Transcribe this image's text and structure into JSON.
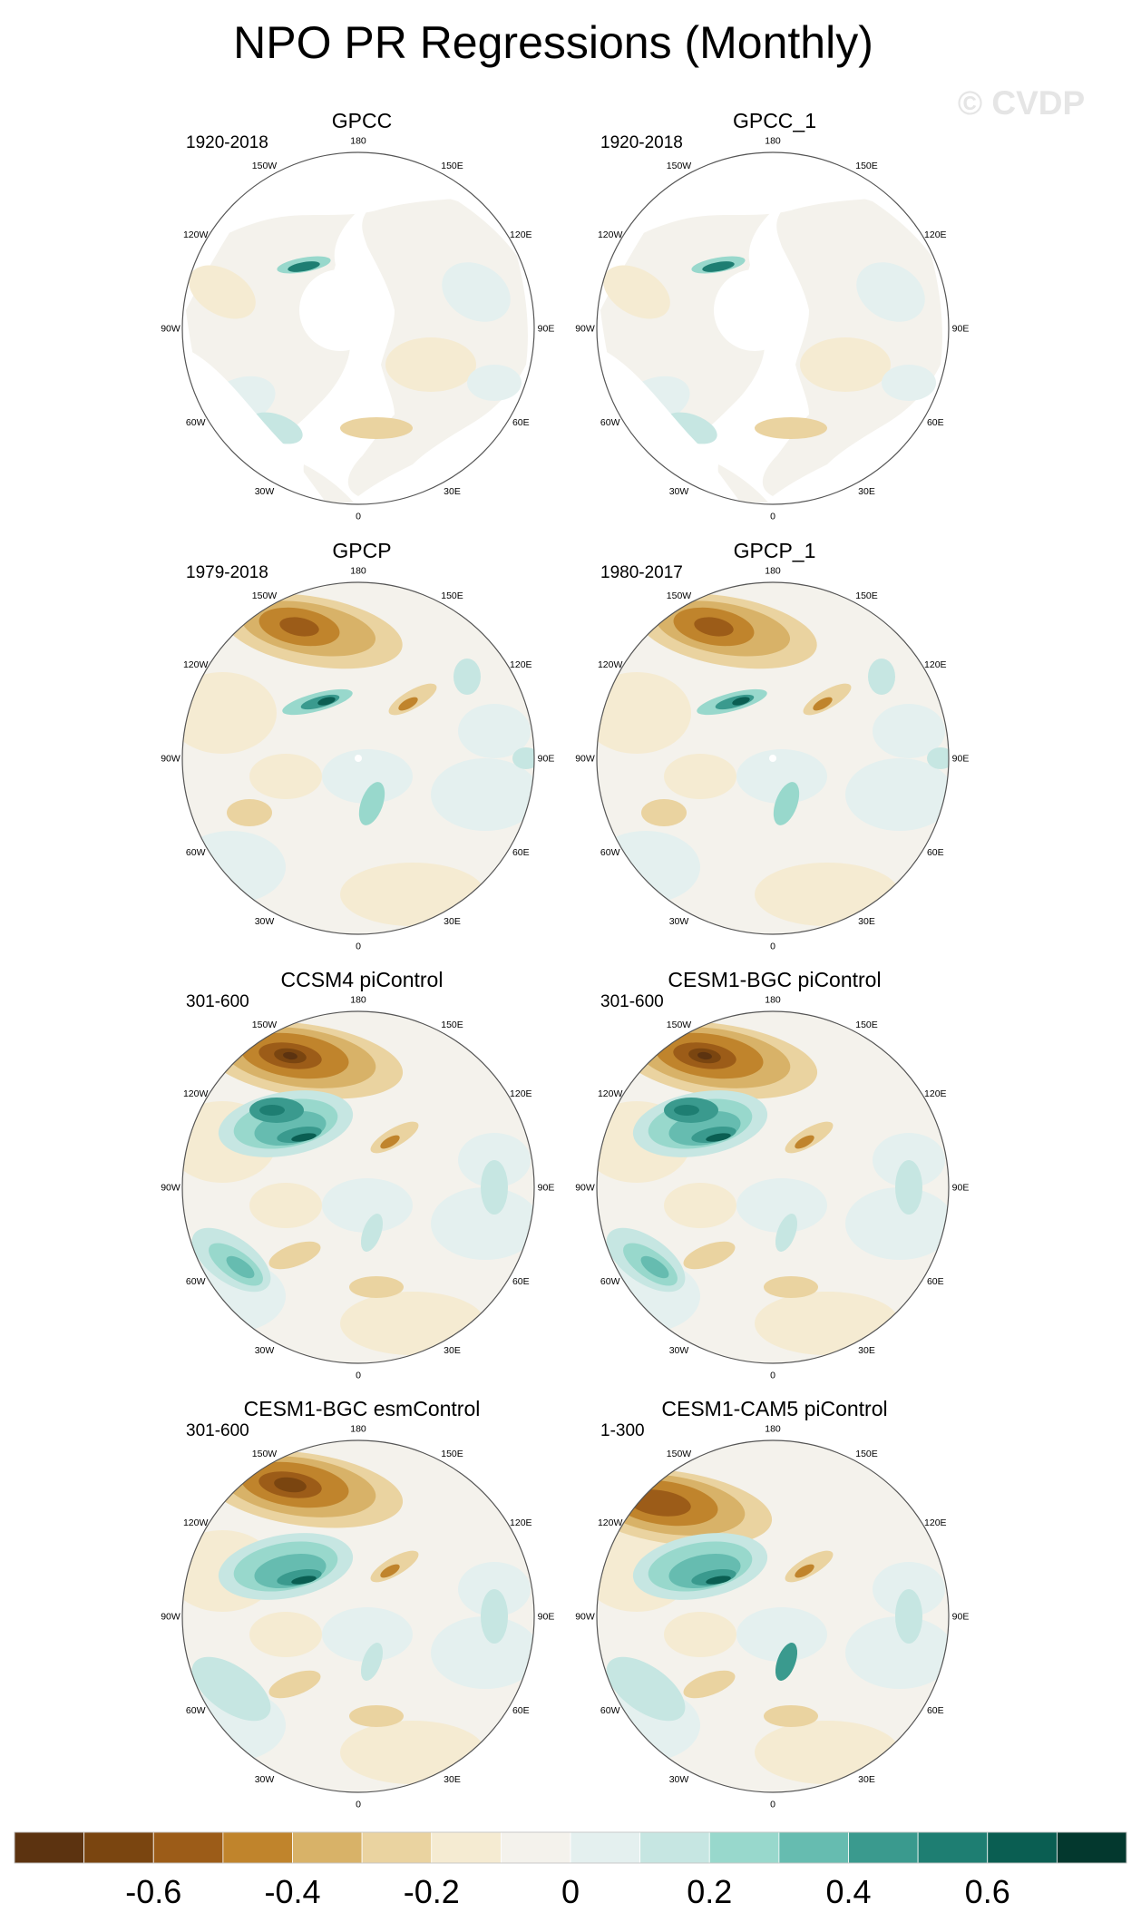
{
  "title": "NPO PR Regressions (Monthly)",
  "watermark": "© CVDP",
  "lon_labels": [
    "180",
    "150E",
    "120E",
    "90E",
    "60E",
    "30E",
    "0",
    "30W",
    "60W",
    "90W",
    "120W",
    "150W"
  ],
  "panels": [
    {
      "name": "GPCC",
      "period": "1920-2018",
      "pattern": "land",
      "features": [
        {
          "label": "Alaska/Pacific coastal pr",
          "sign": "positive",
          "level": 0.5
        },
        {
          "label": "Mediterranean pr",
          "sign": "negative",
          "level": 0.2
        }
      ]
    },
    {
      "name": "GPCC_1",
      "period": "1920-2018",
      "pattern": "land",
      "features": [
        {
          "label": "Alaska/Pacific coastal pr",
          "sign": "positive",
          "level": 0.5
        },
        {
          "label": "Mediterranean pr",
          "sign": "negative",
          "level": 0.2
        }
      ]
    },
    {
      "name": "GPCP",
      "period": "1979-2018",
      "pattern": "obs",
      "features": [
        {
          "label": "Central North Pacific",
          "sign": "negative",
          "level": 0.55
        },
        {
          "label": "Gulf of Alaska coast",
          "sign": "positive",
          "level": 0.5
        },
        {
          "label": "East Asia coast",
          "sign": "negative",
          "level": 0.3
        }
      ]
    },
    {
      "name": "GPCP_1",
      "period": "1980-2017",
      "pattern": "obs",
      "features": [
        {
          "label": "Central North Pacific",
          "sign": "negative",
          "level": 0.55
        },
        {
          "label": "Gulf of Alaska coast",
          "sign": "positive",
          "level": 0.5
        },
        {
          "label": "East Asia coast",
          "sign": "negative",
          "level": 0.3
        }
      ]
    },
    {
      "name": "CCSM4 piControl",
      "period": "301-600",
      "pattern": "model",
      "features": [
        {
          "label": "Central North Pacific",
          "sign": "negative",
          "level": 0.75
        },
        {
          "label": "Northeast Pacific",
          "sign": "positive",
          "level": 0.55
        },
        {
          "label": "North Atlantic",
          "sign": "positive",
          "level": 0.35
        }
      ]
    },
    {
      "name": "CESM1-BGC piControl",
      "period": "301-600",
      "pattern": "model",
      "features": [
        {
          "label": "Central North Pacific",
          "sign": "negative",
          "level": 0.7
        },
        {
          "label": "Northeast Pacific",
          "sign": "positive",
          "level": 0.5
        },
        {
          "label": "North Atlantic",
          "sign": "positive",
          "level": 0.3
        }
      ]
    },
    {
      "name": "CESM1-BGC esmControl",
      "period": "301-600",
      "pattern": "model2",
      "features": [
        {
          "label": "Central North Pacific",
          "sign": "negative",
          "level": 0.65
        },
        {
          "label": "Northeast Pacific",
          "sign": "positive",
          "level": 0.45
        },
        {
          "label": "North Atlantic",
          "sign": "positive",
          "level": 0.2
        }
      ]
    },
    {
      "name": "CESM1-CAM5 piControl",
      "period": "1-300",
      "pattern": "model3",
      "features": [
        {
          "label": "Central North Pacific",
          "sign": "negative",
          "level": 0.65
        },
        {
          "label": "Northeast Pacific",
          "sign": "positive",
          "level": 0.45
        },
        {
          "label": "North Atlantic",
          "sign": "positive",
          "level": 0.2
        }
      ]
    }
  ],
  "colorbar": {
    "colors": [
      "#5c3310",
      "#7a4510",
      "#9c5c18",
      "#c0842c",
      "#d8b268",
      "#ead3a0",
      "#f5ebd2",
      "#f4f2ec",
      "#e4f0ef",
      "#c6e6e2",
      "#98d8cc",
      "#66bcb0",
      "#3a9a8e",
      "#1e7e72",
      "#0a5e52",
      "#03382e"
    ],
    "labels": [
      "-0.6",
      "-0.4",
      "-0.2",
      "0",
      "0.2",
      "0.4",
      "0.6"
    ],
    "label_values": [
      -0.6,
      -0.4,
      -0.2,
      0,
      0.2,
      0.4,
      0.6
    ],
    "min": -0.8,
    "max": 0.8
  },
  "colors": {
    "land_fill": "#ffffff",
    "coast": "#3a3a3a"
  }
}
